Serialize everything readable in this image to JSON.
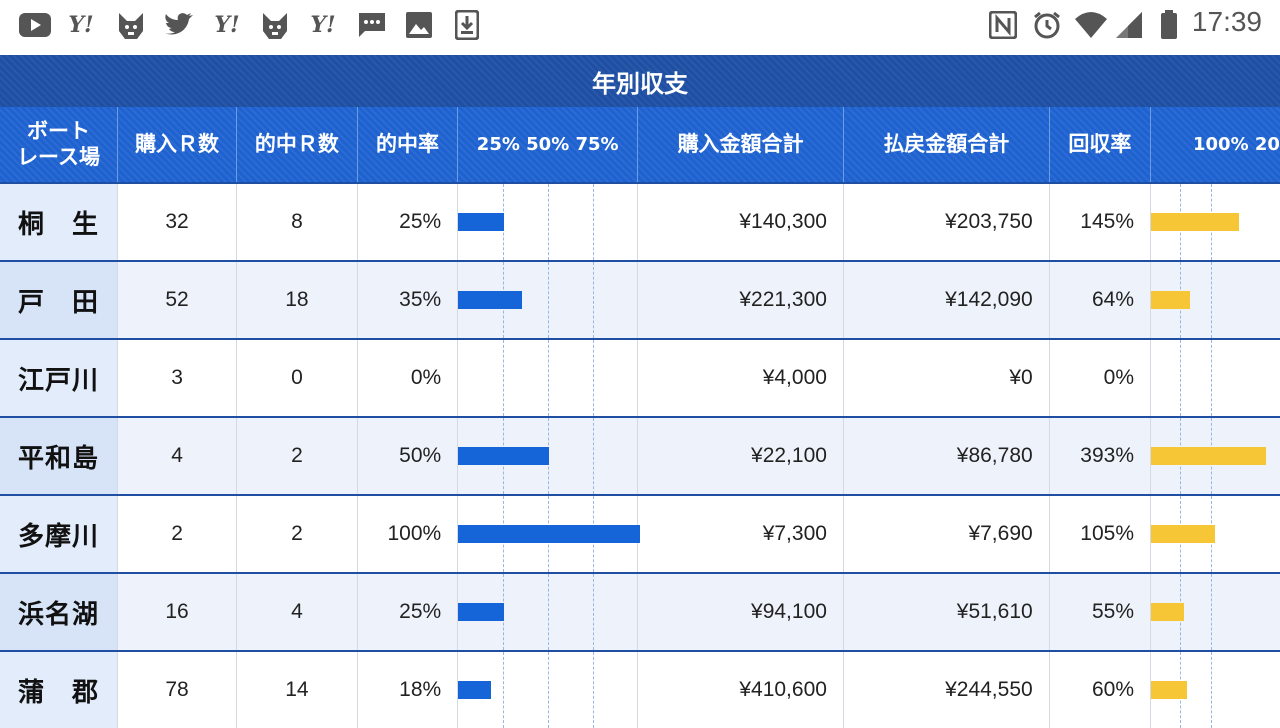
{
  "status_bar": {
    "time": "17:39",
    "left_icons": [
      "youtube-icon",
      "yahoo-icon",
      "shiba-dog-icon",
      "twitter-icon",
      "yahoo-icon",
      "shiba-dog-icon",
      "yahoo-icon",
      "message-icon",
      "image-icon",
      "download-icon"
    ],
    "right_icons": [
      "nfc-icon",
      "alarm-icon",
      "wifi-icon",
      "signal-icon",
      "battery-icon"
    ],
    "yahoo_text": "Y!"
  },
  "title": "年別収支",
  "headers": {
    "venue": "ボート\nレース場",
    "bought_races": "購入Ｒ数",
    "hit_races": "的中Ｒ数",
    "hit_rate": "的中率",
    "hit_rate_scale": "25% 50% 75%",
    "purchase_total": "購入金額合計",
    "payout_total": "払戻金額合計",
    "return_rate": "回収率",
    "return_rate_scale": "100% 20"
  },
  "colors": {
    "header_bg": "#1e62d0",
    "title_bg": "#1e4fa3",
    "hit_bar": "#1565d8",
    "return_bar": "#f7c637"
  },
  "rows": [
    {
      "venue": "桐　生",
      "bought": "32",
      "hit": "8",
      "hit_rate": "25%",
      "purchase": "¥140,300",
      "payout": "¥203,750",
      "return_rate": "145%",
      "hit_value": 25,
      "return_value": 145
    },
    {
      "venue": "戸　田",
      "bought": "52",
      "hit": "18",
      "hit_rate": "35%",
      "purchase": "¥221,300",
      "payout": "¥142,090",
      "return_rate": "64%",
      "hit_value": 35,
      "return_value": 64
    },
    {
      "venue": "江戸川",
      "bought": "3",
      "hit": "0",
      "hit_rate": "0%",
      "purchase": "¥4,000",
      "payout": "¥0",
      "return_rate": "0%",
      "hit_value": 0,
      "return_value": 0
    },
    {
      "venue": "平和島",
      "bought": "4",
      "hit": "2",
      "hit_rate": "50%",
      "purchase": "¥22,100",
      "payout": "¥86,780",
      "return_rate": "393%",
      "hit_value": 50,
      "return_value": 393
    },
    {
      "venue": "多摩川",
      "bought": "2",
      "hit": "2",
      "hit_rate": "100%",
      "purchase": "¥7,300",
      "payout": "¥7,690",
      "return_rate": "105%",
      "hit_value": 100,
      "return_value": 105
    },
    {
      "venue": "浜名湖",
      "bought": "16",
      "hit": "4",
      "hit_rate": "25%",
      "purchase": "¥94,100",
      "payout": "¥51,610",
      "return_rate": "55%",
      "hit_value": 25,
      "return_value": 55
    },
    {
      "venue": "蒲　郡",
      "bought": "78",
      "hit": "14",
      "hit_rate": "18%",
      "purchase": "¥410,600",
      "payout": "¥244,550",
      "return_rate": "60%",
      "hit_value": 18,
      "return_value": 60
    }
  ]
}
